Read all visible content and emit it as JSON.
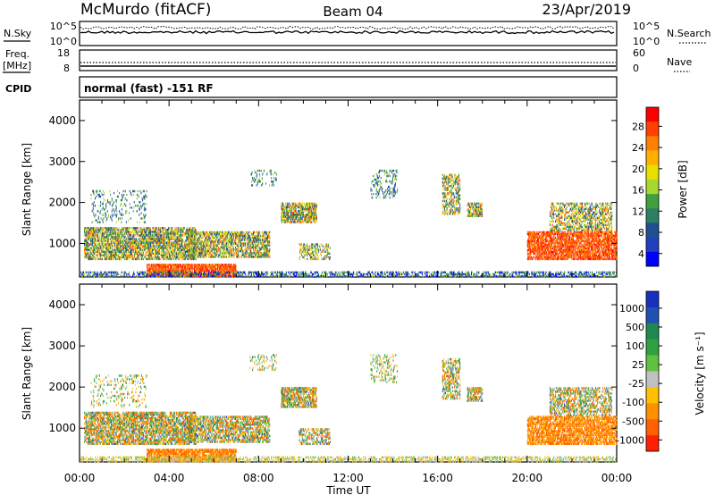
{
  "header": {
    "station": "McMurdo (fitACF)",
    "beam": "Beam 04",
    "date": "23/Apr/2019"
  },
  "noise_panel": {
    "left_label": "N.Sky",
    "right_label": "N.Search",
    "left_ticks": [
      "10^5",
      "10^0"
    ],
    "right_ticks": [
      "10^5",
      "10^0"
    ]
  },
  "freq_panel": {
    "left_label_1": "Freq.",
    "left_label_2": "[MHz]",
    "right_label": "Nave",
    "left_ticks": [
      "18",
      "8"
    ],
    "right_ticks": [
      "60",
      "0"
    ]
  },
  "cpid": {
    "label": "CPID",
    "value": "normal (fast) -151 RF"
  },
  "chart_data": [
    {
      "type": "heatmap",
      "title": "",
      "ylabel": "Slant Range [km]",
      "xlabel": "",
      "xlim": [
        0,
        24
      ],
      "ylim": [
        180,
        4500
      ],
      "yticks": [
        "4000",
        "3000",
        "2000",
        "1000"
      ],
      "colorbar_label": "Power [dB]",
      "colorbar_ticks": [
        "28",
        "24",
        "20",
        "16",
        "12",
        "8",
        "4"
      ],
      "colorbar_colors": [
        "#ff0000",
        "#ff4000",
        "#ff8000",
        "#ffb000",
        "#e8e000",
        "#a8d830",
        "#40a040",
        "#2a8060",
        "#205090",
        "#2040c0",
        "#0000ff"
      ]
    },
    {
      "type": "heatmap",
      "title": "",
      "ylabel": "Slant Range [km]",
      "xlabel": "Time UT",
      "xlim": [
        0,
        24
      ],
      "ylim": [
        180,
        4500
      ],
      "yticks": [
        "4000",
        "3000",
        "2000",
        "1000"
      ],
      "xticks": [
        "00:00",
        "04:00",
        "08:00",
        "12:00",
        "16:00",
        "20:00",
        "00:00"
      ],
      "colorbar_label": "Velocity [m s⁻¹]",
      "colorbar_ticks": [
        "1000",
        "500",
        "100",
        "25",
        "-25",
        "-100",
        "-500",
        "-1000"
      ],
      "colorbar_colors": [
        "#1830c0",
        "#2050b0",
        "#208850",
        "#30a040",
        "#60c040",
        "#c0c0c0",
        "#ffc000",
        "#ff9000",
        "#ff6000",
        "#ff2000"
      ]
    }
  ]
}
